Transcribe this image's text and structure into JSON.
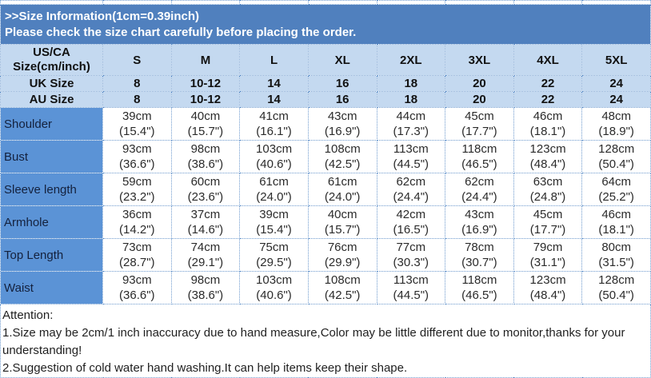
{
  "banner": {
    "line1": ">>Size Information(1cm=0.39inch)",
    "line2": "Please check the size chart carefully before placing the order."
  },
  "table": {
    "corner_header": "US/CA\nSize(cm/inch)",
    "size_columns": [
      "S",
      "M",
      "L",
      "XL",
      "2XL",
      "3XL",
      "4XL",
      "5XL"
    ],
    "size_rows": [
      {
        "label": "UK Size",
        "values": [
          "8",
          "10-12",
          "14",
          "16",
          "18",
          "20",
          "22",
          "24"
        ]
      },
      {
        "label": "AU Size",
        "values": [
          "8",
          "10-12",
          "14",
          "16",
          "18",
          "20",
          "22",
          "24"
        ]
      }
    ],
    "measure_rows": [
      {
        "label": "Shoulder",
        "values": [
          "39cm\n(15.4\")",
          "40cm\n(15.7\")",
          "41cm\n(16.1\")",
          "43cm\n(16.9\")",
          "44cm\n(17.3\")",
          "45cm\n(17.7\")",
          "46cm\n(18.1\")",
          "48cm\n(18.9\")"
        ]
      },
      {
        "label": "Bust",
        "values": [
          "93cm\n(36.6\")",
          "98cm\n(38.6\")",
          "103cm\n(40.6\")",
          "108cm\n(42.5\")",
          "113cm\n(44.5\")",
          "118cm\n(46.5\")",
          "123cm\n(48.4\")",
          "128cm\n(50.4\")"
        ]
      },
      {
        "label": "Sleeve length",
        "values": [
          "59cm\n(23.2\")",
          "60cm\n(23.6\")",
          "61cm\n(24.0\")",
          "61cm\n(24.0\")",
          "62cm\n(24.4\")",
          "62cm\n(24.4\")",
          "63cm\n(24.8\")",
          "64cm\n(25.2\")"
        ]
      },
      {
        "label": "Armhole",
        "values": [
          "36cm\n(14.2\")",
          "37cm\n(14.6\")",
          "39cm\n(15.4\")",
          "40cm\n(15.7\")",
          "42cm\n(16.5\")",
          "43cm\n(16.9\")",
          "45cm\n(17.7\")",
          "46cm\n(18.1\")"
        ]
      },
      {
        "label": "Top Length",
        "values": [
          "73cm\n(28.7\")",
          "74cm\n(29.1\")",
          "75cm\n(29.5\")",
          "76cm\n(29.9\")",
          "77cm\n(30.3\")",
          "78cm\n(30.7\")",
          "79cm\n(31.1\")",
          "80cm\n(31.5\")"
        ]
      },
      {
        "label": "Waist",
        "values": [
          "93cm\n(36.6\")",
          "98cm\n(38.6\")",
          "103cm\n(40.6\")",
          "108cm\n(42.5\")",
          "113cm\n(44.5\")",
          "118cm\n(46.5\")",
          "123cm\n(48.4\")",
          "128cm\n(50.4\")"
        ]
      }
    ]
  },
  "attention": {
    "lines": [
      "Attention:",
      "1.Size may be 2cm/1 inch inaccuracy due to hand measure,Color may be little different due to monitor,thanks for your",
      "understanding!",
      "2.Suggestion of cold water hand washing.It can help items keep their shape."
    ]
  },
  "colors": {
    "banner_bg": "#5080be",
    "header_bg": "#c4d9f0",
    "label_column_bg": "#5b93d6",
    "grid_border": "#6e9ace",
    "banner_text": "#ffffff"
  }
}
